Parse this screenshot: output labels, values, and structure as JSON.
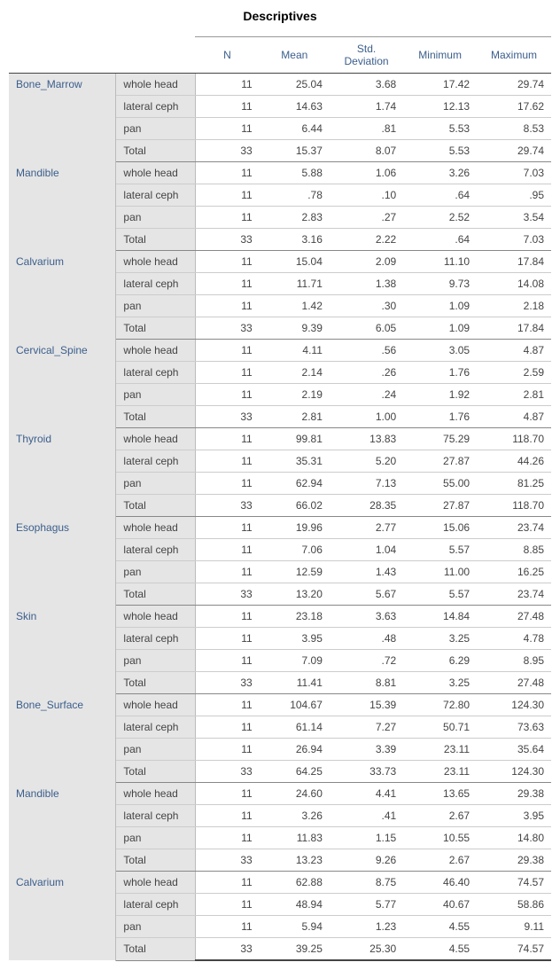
{
  "title": "Descriptives",
  "columns": [
    "N",
    "Mean",
    "Std. Deviation",
    "Minimum",
    "Maximum"
  ],
  "groups": [
    {
      "name": "Bone_Marrow",
      "rows": [
        {
          "label": "whole head",
          "n": "11",
          "mean": "25.04",
          "sd": "3.68",
          "min": "17.42",
          "max": "29.74"
        },
        {
          "label": "lateral ceph",
          "n": "11",
          "mean": "14.63",
          "sd": "1.74",
          "min": "12.13",
          "max": "17.62"
        },
        {
          "label": "pan",
          "n": "11",
          "mean": "6.44",
          "sd": ".81",
          "min": "5.53",
          "max": "8.53"
        },
        {
          "label": "Total",
          "n": "33",
          "mean": "15.37",
          "sd": "8.07",
          "min": "5.53",
          "max": "29.74"
        }
      ]
    },
    {
      "name": "Mandible",
      "rows": [
        {
          "label": "whole head",
          "n": "11",
          "mean": "5.88",
          "sd": "1.06",
          "min": "3.26",
          "max": "7.03"
        },
        {
          "label": "lateral ceph",
          "n": "11",
          "mean": ".78",
          "sd": ".10",
          "min": ".64",
          "max": ".95"
        },
        {
          "label": "pan",
          "n": "11",
          "mean": "2.83",
          "sd": ".27",
          "min": "2.52",
          "max": "3.54"
        },
        {
          "label": "Total",
          "n": "33",
          "mean": "3.16",
          "sd": "2.22",
          "min": ".64",
          "max": "7.03"
        }
      ]
    },
    {
      "name": "Calvarium",
      "rows": [
        {
          "label": "whole head",
          "n": "11",
          "mean": "15.04",
          "sd": "2.09",
          "min": "11.10",
          "max": "17.84"
        },
        {
          "label": "lateral ceph",
          "n": "11",
          "mean": "11.71",
          "sd": "1.38",
          "min": "9.73",
          "max": "14.08"
        },
        {
          "label": "pan",
          "n": "11",
          "mean": "1.42",
          "sd": ".30",
          "min": "1.09",
          "max": "2.18"
        },
        {
          "label": "Total",
          "n": "33",
          "mean": "9.39",
          "sd": "6.05",
          "min": "1.09",
          "max": "17.84"
        }
      ]
    },
    {
      "name": "Cervical_Spine",
      "rows": [
        {
          "label": "whole head",
          "n": "11",
          "mean": "4.11",
          "sd": ".56",
          "min": "3.05",
          "max": "4.87"
        },
        {
          "label": "lateral ceph",
          "n": "11",
          "mean": "2.14",
          "sd": ".26",
          "min": "1.76",
          "max": "2.59"
        },
        {
          "label": "pan",
          "n": "11",
          "mean": "2.19",
          "sd": ".24",
          "min": "1.92",
          "max": "2.81"
        },
        {
          "label": "Total",
          "n": "33",
          "mean": "2.81",
          "sd": "1.00",
          "min": "1.76",
          "max": "4.87"
        }
      ]
    },
    {
      "name": "Thyroid",
      "rows": [
        {
          "label": "whole head",
          "n": "11",
          "mean": "99.81",
          "sd": "13.83",
          "min": "75.29",
          "max": "118.70"
        },
        {
          "label": "lateral ceph",
          "n": "11",
          "mean": "35.31",
          "sd": "5.20",
          "min": "27.87",
          "max": "44.26"
        },
        {
          "label": "pan",
          "n": "11",
          "mean": "62.94",
          "sd": "7.13",
          "min": "55.00",
          "max": "81.25"
        },
        {
          "label": "Total",
          "n": "33",
          "mean": "66.02",
          "sd": "28.35",
          "min": "27.87",
          "max": "118.70"
        }
      ]
    },
    {
      "name": "Esophagus",
      "rows": [
        {
          "label": "whole head",
          "n": "11",
          "mean": "19.96",
          "sd": "2.77",
          "min": "15.06",
          "max": "23.74"
        },
        {
          "label": "lateral ceph",
          "n": "11",
          "mean": "7.06",
          "sd": "1.04",
          "min": "5.57",
          "max": "8.85"
        },
        {
          "label": "pan",
          "n": "11",
          "mean": "12.59",
          "sd": "1.43",
          "min": "11.00",
          "max": "16.25"
        },
        {
          "label": "Total",
          "n": "33",
          "mean": "13.20",
          "sd": "5.67",
          "min": "5.57",
          "max": "23.74"
        }
      ]
    },
    {
      "name": "Skin",
      "rows": [
        {
          "label": "whole head",
          "n": "11",
          "mean": "23.18",
          "sd": "3.63",
          "min": "14.84",
          "max": "27.48"
        },
        {
          "label": "lateral ceph",
          "n": "11",
          "mean": "3.95",
          "sd": ".48",
          "min": "3.25",
          "max": "4.78"
        },
        {
          "label": "pan",
          "n": "11",
          "mean": "7.09",
          "sd": ".72",
          "min": "6.29",
          "max": "8.95"
        },
        {
          "label": "Total",
          "n": "33",
          "mean": "11.41",
          "sd": "8.81",
          "min": "3.25",
          "max": "27.48"
        }
      ]
    },
    {
      "name": "Bone_Surface",
      "rows": [
        {
          "label": "whole head",
          "n": "11",
          "mean": "104.67",
          "sd": "15.39",
          "min": "72.80",
          "max": "124.30"
        },
        {
          "label": "lateral ceph",
          "n": "11",
          "mean": "61.14",
          "sd": "7.27",
          "min": "50.71",
          "max": "73.63"
        },
        {
          "label": "pan",
          "n": "11",
          "mean": "26.94",
          "sd": "3.39",
          "min": "23.11",
          "max": "35.64"
        },
        {
          "label": "Total",
          "n": "33",
          "mean": "64.25",
          "sd": "33.73",
          "min": "23.11",
          "max": "124.30"
        }
      ]
    },
    {
      "name": "Mandible",
      "rows": [
        {
          "label": "whole head",
          "n": "11",
          "mean": "24.60",
          "sd": "4.41",
          "min": "13.65",
          "max": "29.38"
        },
        {
          "label": "lateral ceph",
          "n": "11",
          "mean": "3.26",
          "sd": ".41",
          "min": "2.67",
          "max": "3.95"
        },
        {
          "label": "pan",
          "n": "11",
          "mean": "11.83",
          "sd": "1.15",
          "min": "10.55",
          "max": "14.80"
        },
        {
          "label": "Total",
          "n": "33",
          "mean": "13.23",
          "sd": "9.26",
          "min": "2.67",
          "max": "29.38"
        }
      ]
    },
    {
      "name": "Calvarium",
      "rows": [
        {
          "label": "whole head",
          "n": "11",
          "mean": "62.88",
          "sd": "8.75",
          "min": "46.40",
          "max": "74.57"
        },
        {
          "label": "lateral ceph",
          "n": "11",
          "mean": "48.94",
          "sd": "5.77",
          "min": "40.67",
          "max": "58.86"
        },
        {
          "label": "pan",
          "n": "11",
          "mean": "5.94",
          "sd": "1.23",
          "min": "4.55",
          "max": "9.11"
        },
        {
          "label": "Total",
          "n": "33",
          "mean": "39.25",
          "sd": "25.30",
          "min": "4.55",
          "max": "74.57"
        }
      ]
    }
  ]
}
